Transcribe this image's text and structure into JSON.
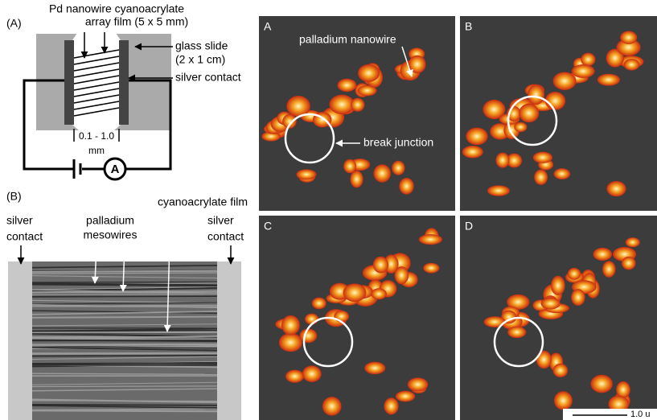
{
  "schematic": {
    "label": "(A)",
    "title_line1": "Pd nanowire cyanoacrylate",
    "title_line2": "array film (5 x 5 mm)",
    "glass_slide": [
      "glass slide",
      "(2 x 1 cm)"
    ],
    "silver_contact": "silver contact",
    "gap": [
      "0.1 - 1.0",
      "mm"
    ],
    "ammeter": "A"
  },
  "sem": {
    "label": "(B)",
    "cyanoacrylate_film": "cyanoacrylate film",
    "left_contact": [
      "silver",
      "contact"
    ],
    "mesowires": [
      "palladium",
      "mesowires"
    ],
    "right_contact": [
      "silver",
      "contact"
    ]
  },
  "afm": {
    "panels": [
      "A",
      "B",
      "C",
      "D"
    ],
    "nanowire": "palladium nanowire",
    "break_junction": "break junction",
    "scale_bar": "1.0 u"
  }
}
